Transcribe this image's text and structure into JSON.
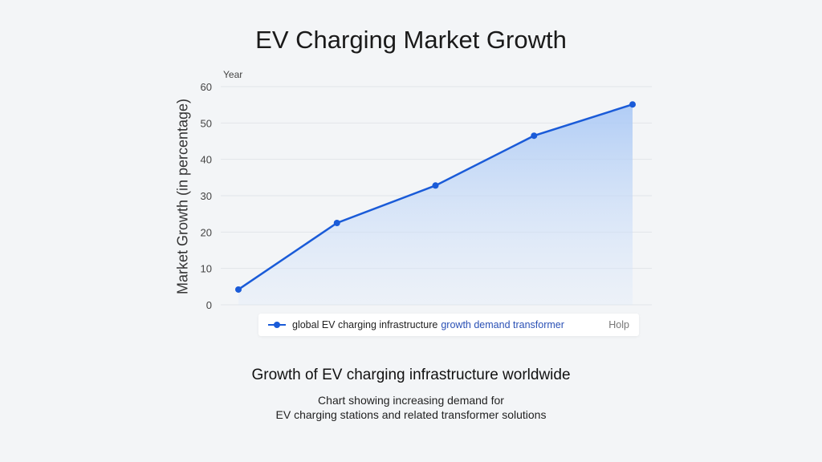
{
  "chart_data": {
    "type": "area",
    "title": "EV Charging Market Growth",
    "xlabel": "Year",
    "ylabel": "Market Growth (in percentage)",
    "ylim": [
      0,
      60
    ],
    "yticks": [
      0,
      10,
      20,
      30,
      40,
      50,
      60
    ],
    "grid": true,
    "legend_placement": "bottom",
    "series": [
      {
        "name": "global EV charging infrastructure growth demand transformer",
        "values": [
          4.2,
          22.5,
          32.8,
          46.5,
          55.1
        ],
        "color": "#1a5bd8"
      }
    ]
  },
  "legend": {
    "label_part1": "global EV charging infrastructure",
    "label_part2": "growth demand transformer",
    "help": "Holp"
  },
  "subtitle": "Growth of EV charging infrastructure worldwide",
  "description_line1": "Chart showing increasing demand for",
  "description_line2": "EV charging stations and related transformer solutions"
}
